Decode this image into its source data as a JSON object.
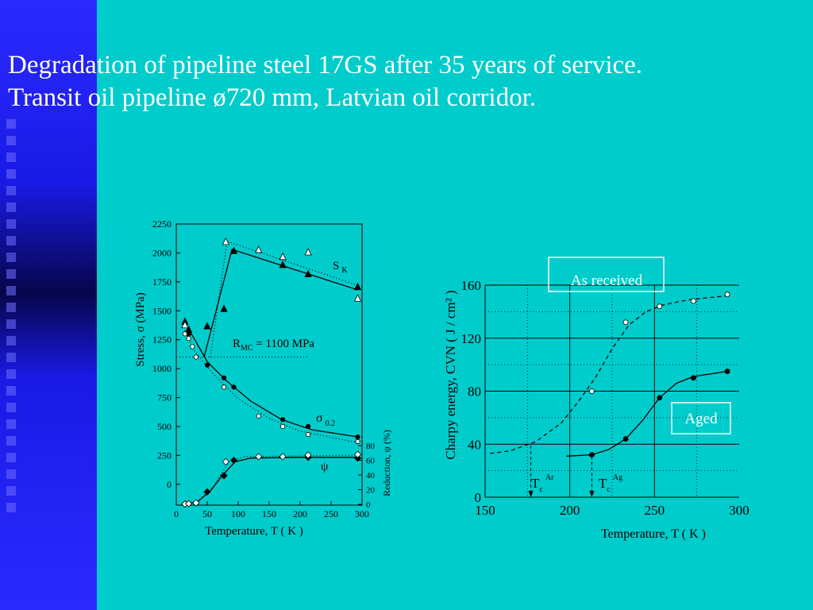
{
  "slide": {
    "title_line1": "Degradation of pipeline steel 17GS after 35 years of service.",
    "title_line2": "Transit oil pipeline ø720 mm, Latvian oil corridor.",
    "accent_color": "#00cccc",
    "panel_color": "#1a1ae6"
  },
  "chart_data": [
    {
      "type": "scatter",
      "xlabel": "Temperature,  T  ( K )",
      "ylabel": "Stress,  σ   (MPa)",
      "ylabel2": "Reduction, ψ  (%)",
      "xlim": [
        0,
        300
      ],
      "ylim": [
        -180,
        2250
      ],
      "xticks": [
        0,
        50,
        100,
        150,
        200,
        250,
        300
      ],
      "yticks": [
        0,
        250,
        500,
        750,
        1000,
        1250,
        1500,
        1750,
        2000,
        2250
      ],
      "y2ticks": [
        0,
        20,
        40,
        60,
        80
      ],
      "annotations": {
        "sk_main": "S",
        "sk_sub": "K",
        "rmc_main": "R",
        "rmc_sub": "MC",
        "rmc_value": " = 1100 MPa",
        "sigma_main": "σ",
        "sigma_sub": "0.2",
        "psi": "ψ"
      },
      "rmc_level": 1100,
      "series": [
        {
          "name": "S",
          "marker": "filled-triangle",
          "x": [
            14,
            20,
            50,
            77,
            93,
            172,
            213,
            293
          ],
          "y": [
            1410,
            1340,
            1370,
            1520,
            2020,
            1900,
            1820,
            1710
          ]
        },
        {
          "name": "S",
          "marker": "open-triangle",
          "x": [
            14,
            80,
            133,
            172,
            213,
            293
          ],
          "y": [
            1380,
            2100,
            2030,
            1970,
            2010,
            1610
          ]
        },
        {
          "name": "σ 0.2",
          "marker": "filled-circle",
          "x": [
            20,
            50,
            77,
            93,
            172,
            213,
            293
          ],
          "y": [
            1300,
            1030,
            920,
            840,
            560,
            500,
            410
          ]
        },
        {
          "name": "σ 0.2",
          "marker": "open-circle",
          "x": [
            14,
            20,
            26,
            32,
            77,
            133,
            172,
            213,
            293
          ],
          "y": [
            1300,
            1260,
            1190,
            1100,
            840,
            590,
            500,
            430,
            370
          ]
        },
        {
          "name": "ψ",
          "marker": "filled-diamond",
          "x": [
            14,
            50,
            77,
            93,
            213,
            293
          ],
          "y": [
            0.5,
            17,
            39,
            60,
            64,
            63
          ]
        },
        {
          "name": "ψ",
          "marker": "open-diamond",
          "x": [
            14,
            20,
            32,
            80,
            133,
            172,
            213,
            293
          ],
          "y": [
            0.5,
            1,
            2,
            58,
            65,
            65,
            67,
            68
          ]
        }
      ]
    },
    {
      "type": "scatter",
      "xlabel": "Temperature, T  ( K )",
      "ylabel": "Charpy   energy,   CVN    ( J / cm² )",
      "xlim": [
        150,
        300
      ],
      "ylim": [
        0,
        160
      ],
      "xticks": [
        150,
        200,
        250,
        300
      ],
      "yticks": [
        0,
        40,
        80,
        120,
        160
      ],
      "tc_ar_main": "T",
      "tc_ar_sub": "c",
      "tc_ar_sup": "Ar",
      "tc_ag_main": "T",
      "tc_ag_sub": "c",
      "tc_ag_sup": "Ag",
      "tc_ar_value": 177,
      "tc_ag_value": 213,
      "series": [
        {
          "name": "As received",
          "marker": "open-circle",
          "style": "dashed",
          "x": [
            213,
            233,
            253,
            273,
            293
          ],
          "y": [
            80,
            132,
            144,
            148,
            153
          ]
        },
        {
          "name": "Aged",
          "marker": "filled-circle",
          "style": "solid",
          "x": [
            213,
            233,
            253,
            273,
            293
          ],
          "y": [
            32,
            44,
            75,
            90,
            95
          ]
        }
      ]
    }
  ]
}
